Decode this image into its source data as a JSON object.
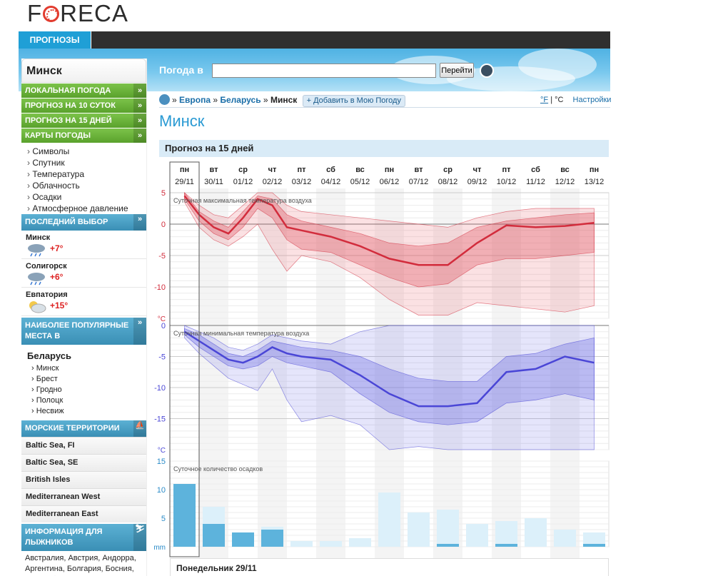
{
  "logo": "FORECA",
  "nav": {
    "tab": "ПРОГНОЗЫ"
  },
  "search": {
    "label": "Погода в",
    "value": "",
    "button": "Перейти"
  },
  "sidebar": {
    "city": "Минск",
    "menu": [
      "ЛОКАЛЬНАЯ ПОГОДА",
      "ПРОГНОЗ НА 10 СУТОК",
      "ПРОГНОЗ НА 15 ДНЕЙ",
      "КАРТЫ ПОГОДЫ"
    ],
    "map_items": [
      "Символы",
      "Спутник",
      "Температура",
      "Облачность",
      "Осадки",
      "Атмосферное давление"
    ],
    "recent_title": "ПОСЛЕДНИЙ ВЫБОР",
    "recent": [
      {
        "name": "Минск",
        "temp": "+7°"
      },
      {
        "name": "Солигорск",
        "temp": "+6°"
      },
      {
        "name": "Евпатория",
        "temp": "+15°"
      }
    ],
    "popular_title": "НАИБОЛЕЕ ПОПУЛЯРНЫЕ МЕСТА В",
    "popular_country": "Беларусь",
    "popular": [
      "Минск",
      "Брест",
      "Гродно",
      "Полоцк",
      "Несвиж"
    ],
    "sea_title": "МОРСКИЕ ТЕРРИТОРИИ",
    "seas": [
      "Baltic Sea, FI",
      "Baltic Sea, SE",
      "British Isles",
      "Mediterranean West",
      "Mediterranean East"
    ],
    "ski_title": "ИНФОРМАЦИЯ ДЛЯ ЛЫЖНИКОВ",
    "ski_countries": "Австралия, Австрия, Андорра, Аргентина, Болгария, Босния, Великобритания, Германия,"
  },
  "breadcrumb": {
    "europe": "Европа",
    "country": "Беларусь",
    "city": "Минск",
    "add": "+ Добавить в Мою Погоду",
    "sep": "»"
  },
  "units": {
    "f": "°F",
    "sep": "|",
    "c": "°C",
    "settings": "Настройки"
  },
  "page_title": "Минск",
  "section_title": "Прогноз на 15 дней",
  "footer_day": "Понедельник 29/11",
  "chart_data": {
    "type": "area",
    "days": [
      "пн",
      "вт",
      "ср",
      "чт",
      "пт",
      "сб",
      "вс",
      "пн",
      "вт",
      "ср",
      "чт",
      "пт",
      "сб",
      "вс",
      "пн"
    ],
    "dates": [
      "29/11",
      "30/11",
      "01/12",
      "02/12",
      "03/12",
      "04/12",
      "05/12",
      "06/12",
      "07/12",
      "08/12",
      "09/12",
      "10/12",
      "11/12",
      "12/12",
      "13/12"
    ],
    "selected_index": 0,
    "max_temp": {
      "title": "Суточная максимальная температура воздуха",
      "unit": "°C",
      "yticks": [
        5,
        0,
        -5,
        -10
      ],
      "ylim": [
        -15,
        5
      ],
      "x": [
        0,
        0.5,
        1,
        1.5,
        2,
        2.5,
        3,
        3.5,
        4,
        5,
        6,
        7,
        8,
        9,
        10,
        11,
        12,
        13,
        14
      ],
      "mean": [
        4.5,
        1.5,
        -0.5,
        -1.5,
        1,
        4,
        3,
        -0.5,
        -1,
        -2,
        -3.5,
        -5.5,
        -6.5,
        -6.5,
        -3,
        -0.2,
        -0.5,
        -0.3,
        0.2
      ],
      "inner_high": [
        5,
        2,
        0.5,
        -0.5,
        2,
        4.5,
        4,
        1.5,
        0.5,
        -0.5,
        -1.5,
        -3,
        -3.5,
        -3,
        -0.5,
        0.5,
        1,
        1.5,
        1.8
      ],
      "inner_low": [
        4,
        0.5,
        -1.5,
        -2.5,
        -0.5,
        2.5,
        1,
        -2.5,
        -4,
        -4.5,
        -6.5,
        -8.5,
        -10,
        -9.5,
        -6.5,
        -5.5,
        -5.5,
        -5,
        -4.5
      ],
      "outer_high": [
        5,
        3,
        1.5,
        1,
        3,
        5,
        5,
        3,
        2,
        1.5,
        1,
        0.5,
        0,
        -0.5,
        1,
        2,
        2.5,
        2.5,
        2.5
      ],
      "outer_low": [
        3.5,
        -0.5,
        -2.5,
        -3.5,
        -2,
        0,
        -4,
        -7.5,
        -5,
        -6,
        -8.5,
        -12,
        -14.5,
        -14.5,
        -12.5,
        -13,
        -13.5,
        -14,
        -13
      ]
    },
    "min_temp": {
      "title": "Суточная минимальная температура воздуха",
      "unit": "°C",
      "yticks": [
        0,
        -5,
        -10,
        -15
      ],
      "ylim": [
        -20,
        0
      ],
      "x": [
        0,
        0.5,
        1,
        1.5,
        2,
        2.5,
        3,
        3.5,
        4,
        5,
        6,
        7,
        8,
        9,
        10,
        11,
        12,
        13,
        14
      ],
      "mean": [
        -1,
        -2.5,
        -4,
        -5.5,
        -6,
        -5,
        -3.5,
        -4.5,
        -5,
        -5.5,
        -8,
        -11,
        -13,
        -13,
        -12.5,
        -7.5,
        -7,
        -5,
        -6
      ],
      "inner_high": [
        -0.5,
        -1.5,
        -3,
        -4.5,
        -5,
        -4,
        -2.5,
        -3,
        -3.5,
        -4,
        -5,
        -7,
        -8.5,
        -9,
        -9,
        -5,
        -4.5,
        -3,
        -2
      ],
      "inner_low": [
        -1.5,
        -3.5,
        -5,
        -6.5,
        -7,
        -6.5,
        -5,
        -6,
        -6.5,
        -7.5,
        -11,
        -14,
        -15.5,
        -16,
        -15.5,
        -12.5,
        -12,
        -11,
        -12
      ],
      "outer_high": [
        0,
        -1,
        -2,
        -3.5,
        -4,
        -3,
        -1.5,
        -2,
        -2.5,
        -3,
        -1,
        0,
        0,
        0,
        0,
        0,
        0,
        0,
        0
      ],
      "outer_low": [
        -2,
        -4.5,
        -6.5,
        -8.5,
        -9.5,
        -10.5,
        -7,
        -12,
        -15.5,
        -14.5,
        -16,
        -20,
        -19.5,
        -20,
        -20,
        -20,
        -20,
        -20,
        -20
      ]
    },
    "precip": {
      "title": "Суточное количество осадков",
      "unit": "mm",
      "yticks": [
        15,
        10,
        5
      ],
      "ylim": [
        0,
        15
      ],
      "total": [
        11,
        7,
        2.5,
        3.5,
        1,
        1,
        1.5,
        9.5,
        6,
        6.5,
        4,
        4.5,
        5,
        3,
        2.5
      ],
      "likely": [
        11,
        4,
        2.5,
        3,
        0,
        0,
        0,
        0,
        0,
        0.5,
        0,
        0.5,
        0,
        0,
        0.5
      ]
    }
  }
}
